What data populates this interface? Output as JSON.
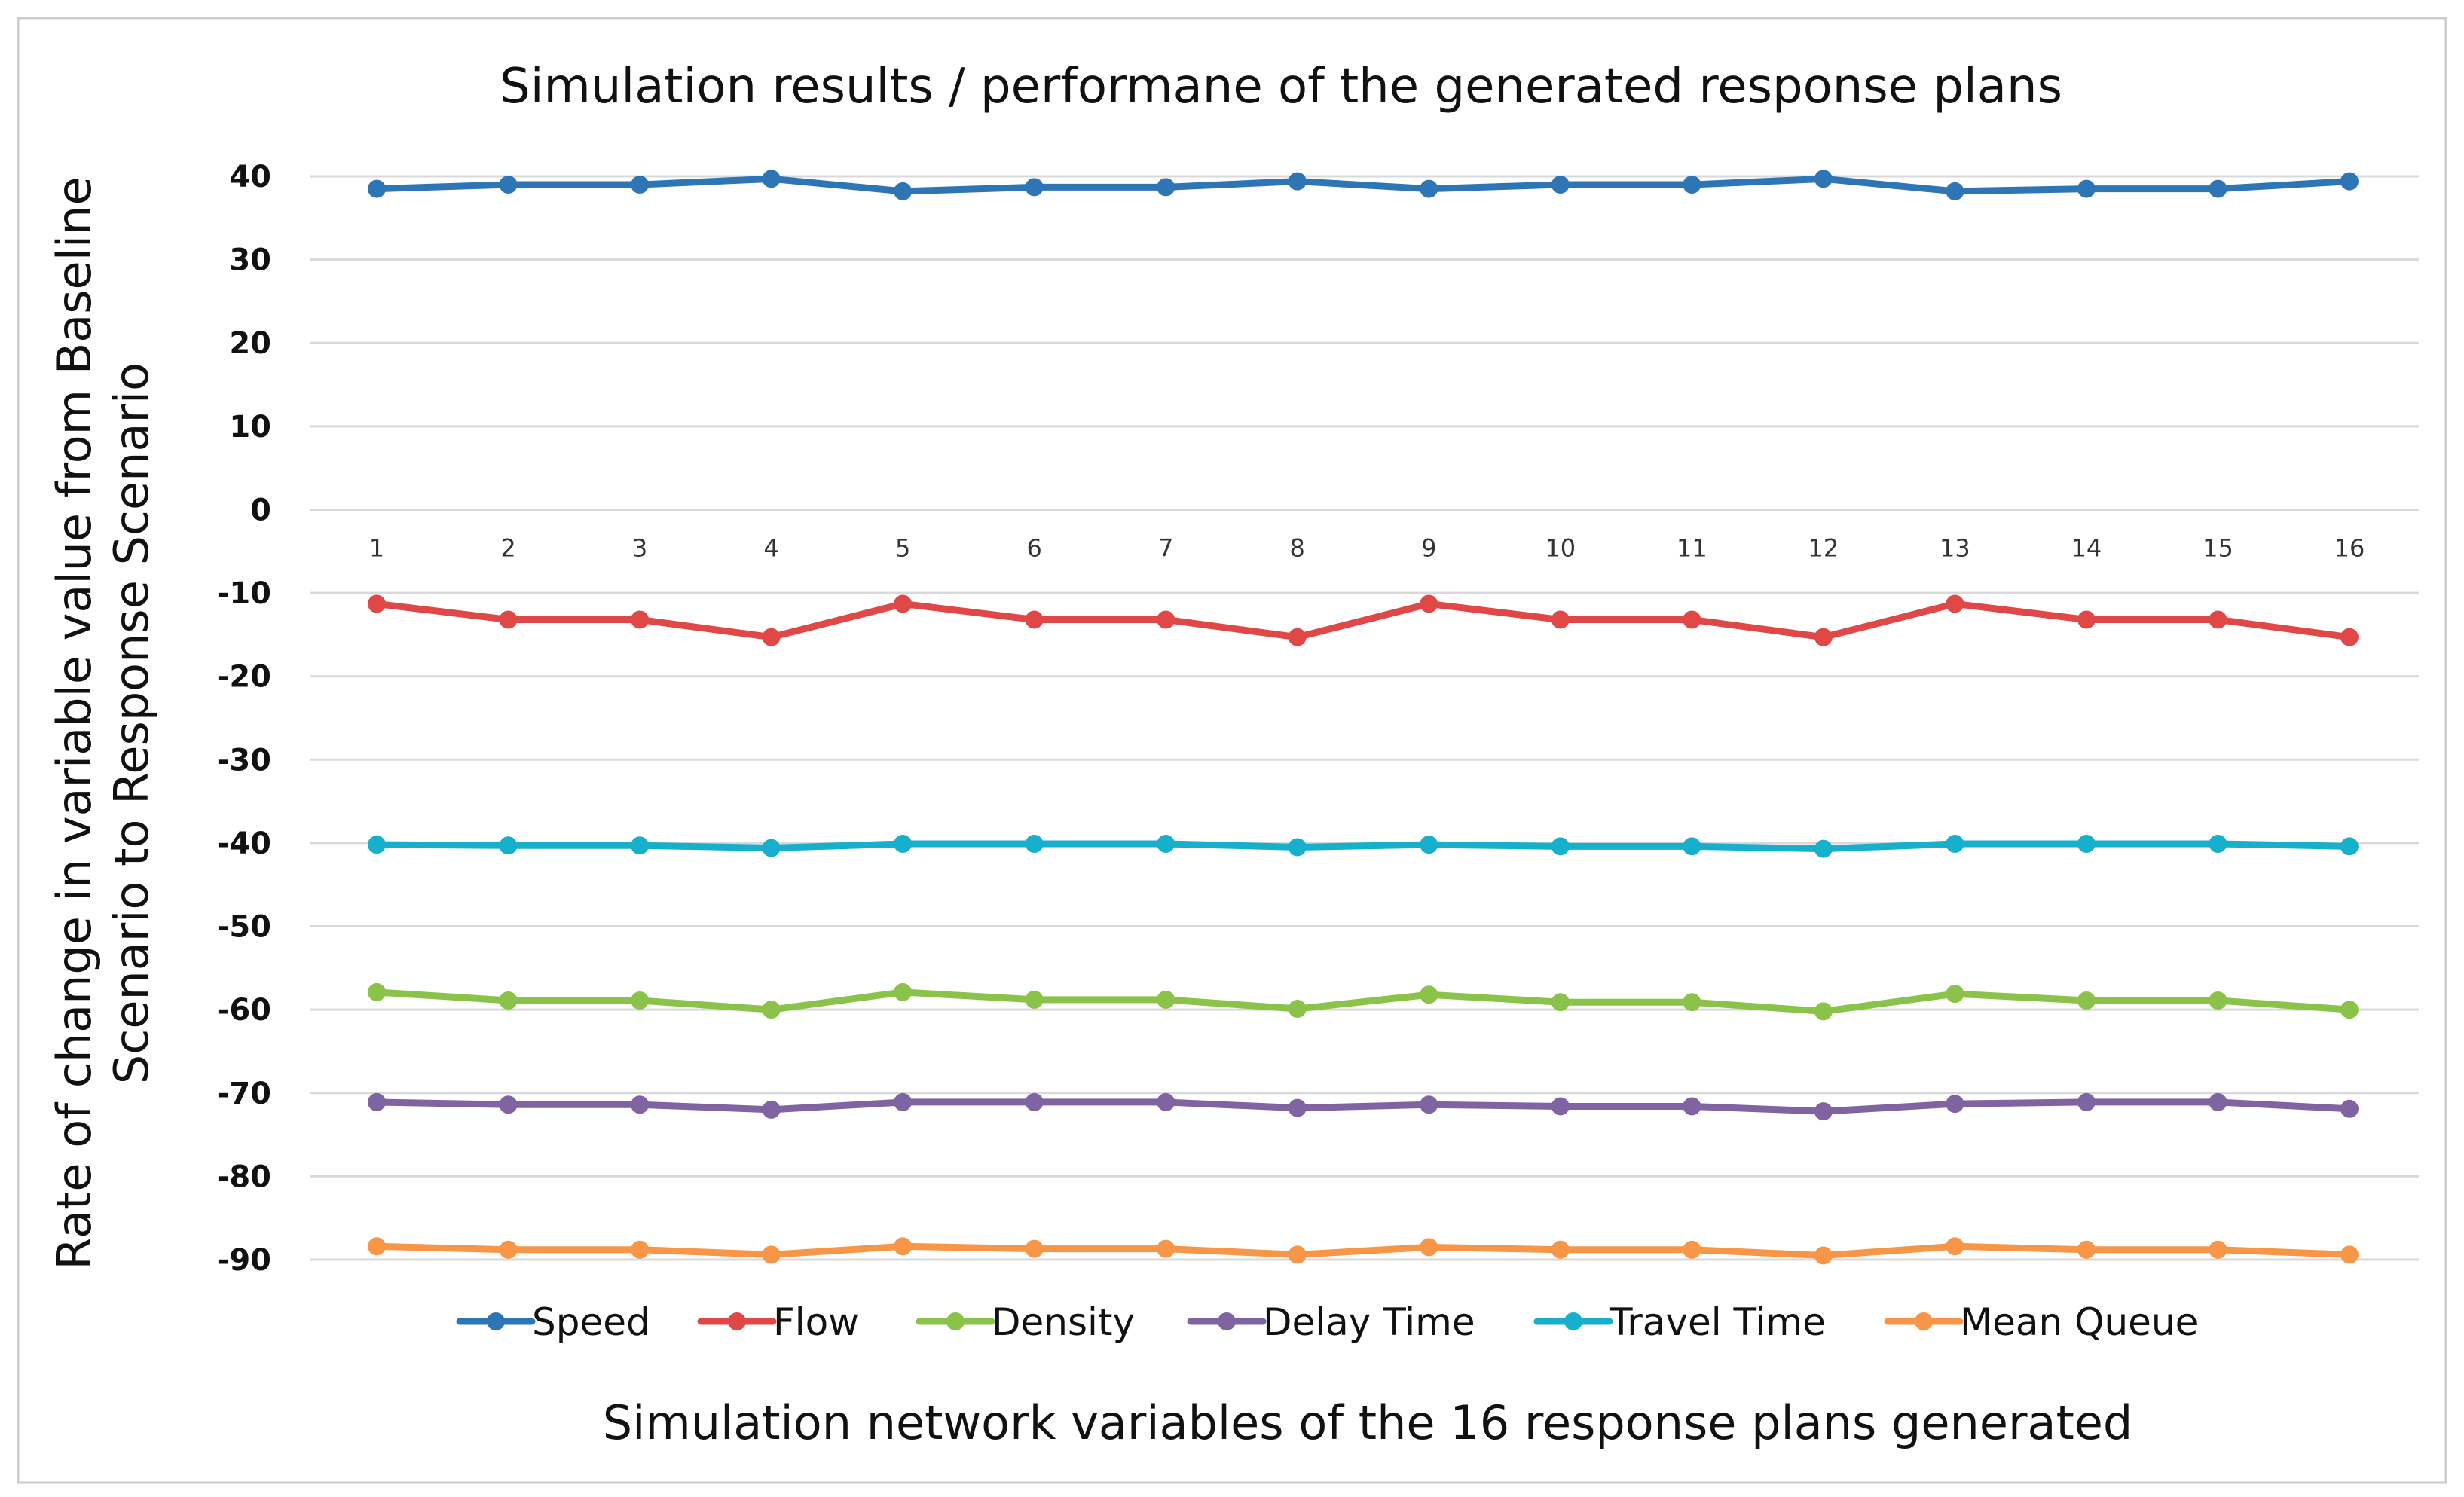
{
  "chart_data": {
    "type": "line",
    "title": "Simulation results / performane of the generated response plans",
    "xlabel": "Simulation network variables of the 16 response plans generated",
    "ylabel_line1": "Rate of change in variable value from Baseline",
    "ylabel_line2": "Scenario to Response Scenario",
    "ylim": [
      -90,
      40
    ],
    "yticks": [
      40,
      30,
      20,
      10,
      0,
      -10,
      -20,
      -30,
      -40,
      -50,
      -60,
      -70,
      -80,
      -90
    ],
    "categories": [
      "1",
      "2",
      "3",
      "4",
      "5",
      "6",
      "7",
      "8",
      "9",
      "10",
      "11",
      "12",
      "13",
      "14",
      "15",
      "16"
    ],
    "grid": true,
    "legend_position": "bottom",
    "series": [
      {
        "name": "Speed",
        "color": "#2E75B6",
        "values": [
          38.5,
          39,
          39,
          39.7,
          38.2,
          38.7,
          38.7,
          39.4,
          38.5,
          39,
          39,
          39.7,
          38.2,
          38.5,
          38.5,
          39.4
        ]
      },
      {
        "name": "Flow",
        "color": "#E04848",
        "values": [
          -11.3,
          -13.2,
          -13.2,
          -15.3,
          -11.3,
          -13.2,
          -13.2,
          -15.3,
          -11.3,
          -13.2,
          -13.2,
          -15.3,
          -11.3,
          -13.2,
          -13.2,
          -15.3
        ]
      },
      {
        "name": "Density",
        "color": "#8BC34A",
        "values": [
          -57.9,
          -58.9,
          -58.9,
          -60,
          -57.9,
          -58.8,
          -58.8,
          -59.9,
          -58.2,
          -59.1,
          -59.1,
          -60.2,
          -58.1,
          -58.9,
          -58.9,
          -60
        ]
      },
      {
        "name": "Delay Time",
        "color": "#8064A2",
        "values": [
          -71.1,
          -71.4,
          -71.4,
          -72,
          -71.1,
          -71.1,
          -71.1,
          -71.8,
          -71.4,
          -71.6,
          -71.6,
          -72.2,
          -71.3,
          -71.1,
          -71.1,
          -71.9
        ]
      },
      {
        "name": "Travel Time",
        "color": "#17B0CC",
        "values": [
          -40.2,
          -40.3,
          -40.3,
          -40.6,
          -40.1,
          -40.1,
          -40.1,
          -40.5,
          -40.2,
          -40.4,
          -40.4,
          -40.7,
          -40.1,
          -40.1,
          -40.1,
          -40.4
        ]
      },
      {
        "name": "Mean Queue",
        "color": "#F79646",
        "values": [
          -88.4,
          -88.8,
          -88.8,
          -89.4,
          -88.4,
          -88.7,
          -88.7,
          -89.4,
          -88.5,
          -88.8,
          -88.8,
          -89.5,
          -88.4,
          -88.8,
          -88.8,
          -89.4
        ]
      }
    ]
  }
}
